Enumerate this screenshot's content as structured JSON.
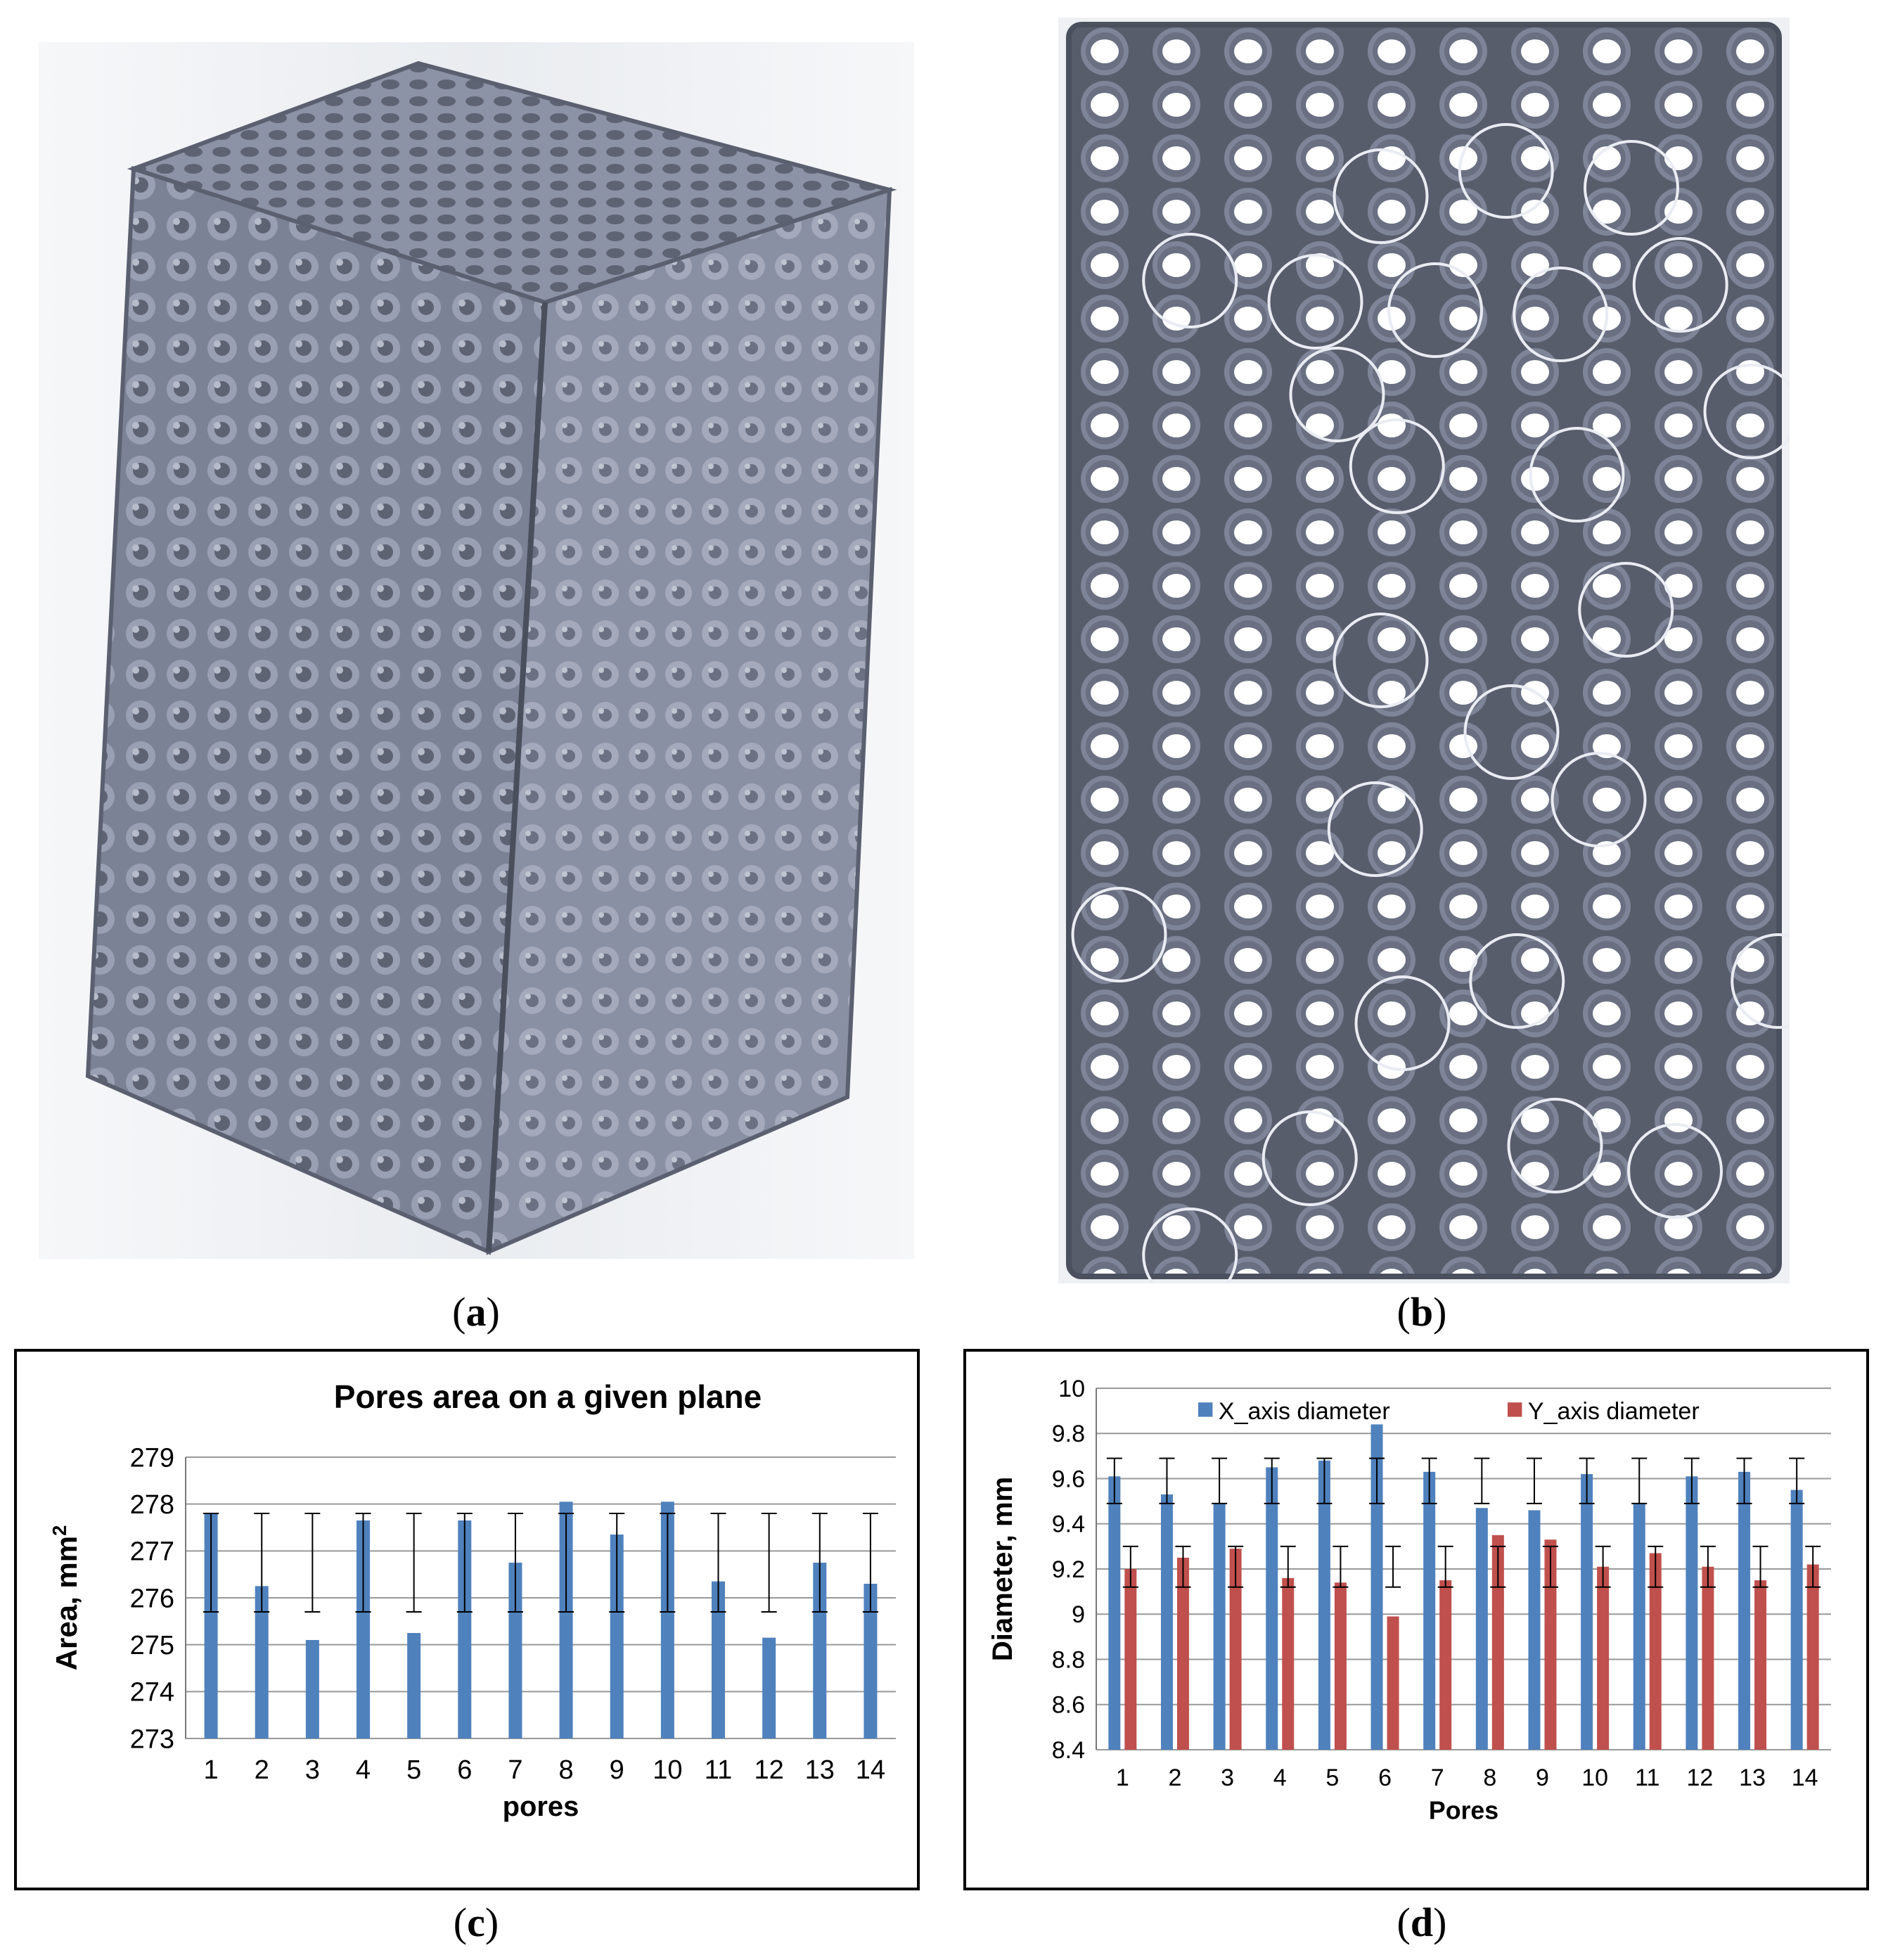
{
  "captions": {
    "a": {
      "open": "(",
      "letter": "a",
      "close": ")"
    },
    "b": {
      "open": "(",
      "letter": "b",
      "close": ")"
    },
    "c": {
      "open": "(",
      "letter": "c",
      "close": ")"
    },
    "d": {
      "open": "(",
      "letter": "d",
      "close": ")"
    }
  },
  "colors": {
    "bar_blue": "#4f81bd",
    "bar_red": "#c0504d",
    "lattice_fill": "#5b6070",
    "lattice_light": "#8e94a6",
    "pore_white": "#ffffff"
  },
  "chart_data": [
    {
      "id": "c",
      "type": "bar",
      "title": "Pores area on a given plane",
      "xlabel": "pores",
      "ylabel": "Area, mm",
      "ylabel_superscript": "2",
      "ylim": [
        273,
        279
      ],
      "yticks": [
        273,
        274,
        275,
        276,
        277,
        278,
        279
      ],
      "grid": true,
      "categories": [
        "1",
        "2",
        "3",
        "4",
        "5",
        "6",
        "7",
        "8",
        "9",
        "10",
        "11",
        "12",
        "13",
        "14"
      ],
      "series": [
        {
          "name": "Area",
          "color": "#4f81bd",
          "values": [
            277.8,
            276.25,
            275.1,
            277.65,
            275.25,
            277.65,
            276.75,
            278.05,
            277.35,
            278.05,
            276.35,
            275.15,
            276.75,
            276.3
          ],
          "error_low": [
            275.7,
            275.7,
            275.7,
            275.7,
            275.7,
            275.7,
            275.7,
            275.7,
            275.7,
            275.7,
            275.7,
            275.7,
            275.7,
            275.7
          ],
          "error_high": [
            277.8,
            277.8,
            277.8,
            277.8,
            277.8,
            277.8,
            277.8,
            277.8,
            277.8,
            277.8,
            277.8,
            277.8,
            277.8,
            277.8
          ]
        }
      ]
    },
    {
      "id": "d",
      "type": "bar",
      "title": "",
      "xlabel": "Pores",
      "ylabel": "Diameter, mm",
      "ylim": [
        8.4,
        10
      ],
      "yticks": [
        "8.4",
        "8.6",
        "8.8",
        "9",
        "9.2",
        "9.4",
        "9.6",
        "9.8",
        "10"
      ],
      "grid": true,
      "legend": "top",
      "categories": [
        "1",
        "2",
        "3",
        "4",
        "5",
        "6",
        "7",
        "8",
        "9",
        "10",
        "11",
        "12",
        "13",
        "14"
      ],
      "series": [
        {
          "name": "X_axis diameter",
          "color": "#4f81bd",
          "values": [
            9.61,
            9.53,
            9.49,
            9.65,
            9.68,
            9.84,
            9.63,
            9.47,
            9.46,
            9.62,
            9.49,
            9.61,
            9.63,
            9.55
          ],
          "error_low": [
            9.49,
            9.49,
            9.49,
            9.49,
            9.49,
            9.49,
            9.49,
            9.49,
            9.49,
            9.49,
            9.49,
            9.49,
            9.49,
            9.49
          ],
          "error_high": [
            9.69,
            9.69,
            9.69,
            9.69,
            9.69,
            9.69,
            9.69,
            9.69,
            9.69,
            9.69,
            9.69,
            9.69,
            9.69,
            9.69
          ]
        },
        {
          "name": "Y_axis diameter",
          "color": "#c0504d",
          "values": [
            9.2,
            9.25,
            9.29,
            9.16,
            9.14,
            8.99,
            9.15,
            9.35,
            9.33,
            9.21,
            9.27,
            9.21,
            9.15,
            9.22
          ],
          "error_low": [
            9.12,
            9.12,
            9.12,
            9.12,
            9.12,
            9.12,
            9.12,
            9.12,
            9.12,
            9.12,
            9.12,
            9.12,
            9.12,
            9.12
          ],
          "error_high": [
            9.3,
            9.3,
            9.3,
            9.3,
            9.3,
            9.3,
            9.3,
            9.3,
            9.3,
            9.3,
            9.3,
            9.3,
            9.3,
            9.3
          ]
        }
      ]
    }
  ]
}
